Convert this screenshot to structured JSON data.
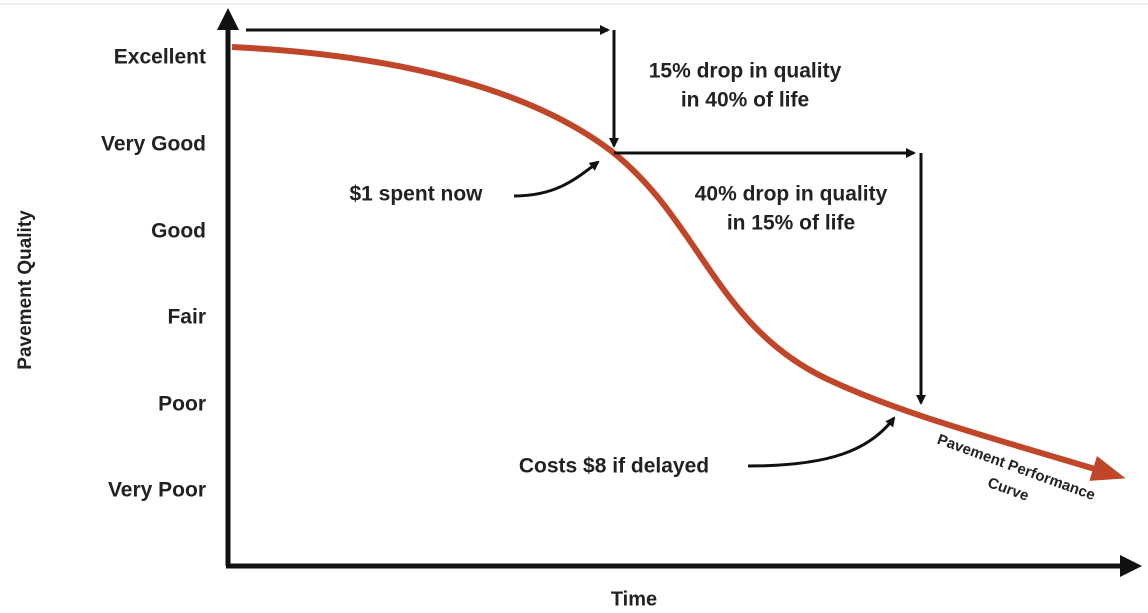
{
  "y_axis": {
    "title": "Pavement Quality",
    "levels": [
      "Excellent",
      "Very Good",
      "Good",
      "Fair",
      "Poor",
      "Very Poor"
    ]
  },
  "x_axis": {
    "title": "Time"
  },
  "annotations": {
    "early_drop": [
      "15% drop in quality",
      "in 40% of  life"
    ],
    "late_drop": [
      "40% drop in quality",
      "in 15% of life"
    ],
    "early_cost": "$1 spent now",
    "late_cost": "Costs $8 if delayed",
    "curve_label": [
      "Pavement Performance",
      "Curve"
    ]
  }
}
